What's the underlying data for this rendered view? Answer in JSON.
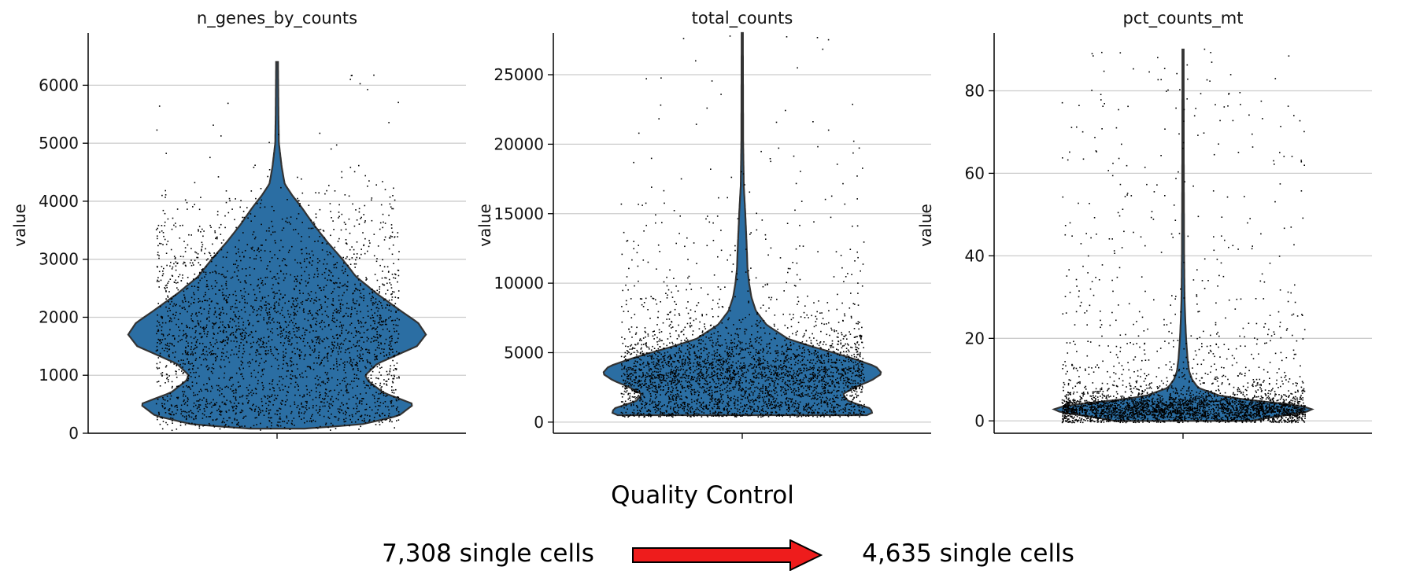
{
  "chart_data": [
    {
      "type": "violin",
      "title": "n_genes_by_counts",
      "ylabel": "value",
      "ylim": [
        0,
        6900
      ],
      "yticks": [
        0,
        1000,
        2000,
        3000,
        4000,
        5000,
        6000
      ],
      "ytick_labels": [
        "0",
        "1000",
        "2000",
        "3000",
        "4000",
        "5000",
        "6000"
      ],
      "data_min": 80,
      "data_max": 6400,
      "grid": true,
      "color": "#2b6ea3",
      "density_profile": [
        [
          80,
          0.18
        ],
        [
          150,
          0.55
        ],
        [
          300,
          0.8
        ],
        [
          500,
          0.9
        ],
        [
          700,
          0.7
        ],
        [
          900,
          0.6
        ],
        [
          1000,
          0.58
        ],
        [
          1200,
          0.66
        ],
        [
          1500,
          0.92
        ],
        [
          1700,
          0.98
        ],
        [
          1900,
          0.93
        ],
        [
          2100,
          0.82
        ],
        [
          2400,
          0.66
        ],
        [
          2700,
          0.52
        ],
        [
          3000,
          0.43
        ],
        [
          3300,
          0.33
        ],
        [
          3600,
          0.24
        ],
        [
          3900,
          0.16
        ],
        [
          4100,
          0.1
        ],
        [
          4300,
          0.05
        ],
        [
          4600,
          0.03
        ],
        [
          5000,
          0.012
        ],
        [
          5500,
          0.009
        ],
        [
          6400,
          0.006
        ]
      ],
      "points": {
        "count": 3000,
        "jitter": 0.8
      }
    },
    {
      "type": "violin",
      "title": "total_counts",
      "ylabel": "value",
      "ylim": [
        -800,
        28000
      ],
      "yticks": [
        0,
        5000,
        10000,
        15000,
        20000,
        25000
      ],
      "ytick_labels": [
        "0",
        "5000",
        "10000",
        "15000",
        "20000",
        "25000"
      ],
      "data_min": 500,
      "data_max": 28000,
      "grid": true,
      "color": "#2b6ea3",
      "density_profile": [
        [
          500,
          0.82
        ],
        [
          700,
          0.86
        ],
        [
          1000,
          0.84
        ],
        [
          1500,
          0.7
        ],
        [
          2000,
          0.66
        ],
        [
          2500,
          0.74
        ],
        [
          3000,
          0.85
        ],
        [
          3500,
          0.92
        ],
        [
          4000,
          0.88
        ],
        [
          4500,
          0.75
        ],
        [
          5000,
          0.6
        ],
        [
          5500,
          0.44
        ],
        [
          6000,
          0.3
        ],
        [
          7000,
          0.16
        ],
        [
          8000,
          0.09
        ],
        [
          9000,
          0.06
        ],
        [
          10000,
          0.045
        ],
        [
          11000,
          0.035
        ],
        [
          13000,
          0.028
        ],
        [
          15000,
          0.02
        ],
        [
          17000,
          0.01
        ],
        [
          20000,
          0.006
        ],
        [
          28000,
          0.004
        ]
      ],
      "points": {
        "count": 3400,
        "jitter": 0.8
      }
    },
    {
      "type": "violin",
      "title": "pct_counts_mt",
      "ylabel": "value",
      "ylim": [
        -3,
        94
      ],
      "yticks": [
        0,
        20,
        40,
        60,
        80
      ],
      "ytick_labels": [
        "0",
        "20",
        "40",
        "60",
        "80"
      ],
      "data_min": 0,
      "data_max": 90,
      "grid": true,
      "color": "#2b6ea3",
      "density_profile": [
        [
          0,
          0.45
        ],
        [
          1,
          0.6
        ],
        [
          2,
          0.8
        ],
        [
          3,
          0.86
        ],
        [
          4,
          0.7
        ],
        [
          5,
          0.45
        ],
        [
          6,
          0.25
        ],
        [
          8,
          0.1
        ],
        [
          10,
          0.06
        ],
        [
          12,
          0.04
        ],
        [
          15,
          0.03
        ],
        [
          20,
          0.02
        ],
        [
          25,
          0.014
        ],
        [
          30,
          0.01
        ],
        [
          40,
          0.007
        ],
        [
          60,
          0.005
        ],
        [
          90,
          0.004
        ]
      ],
      "points": {
        "count": 3400,
        "jitter": 0.8
      }
    }
  ],
  "caption": {
    "title": "Quality Control",
    "before": "7,308 single cells",
    "after": "4,635 single cells",
    "arrow_color": "#ee1c1c"
  }
}
